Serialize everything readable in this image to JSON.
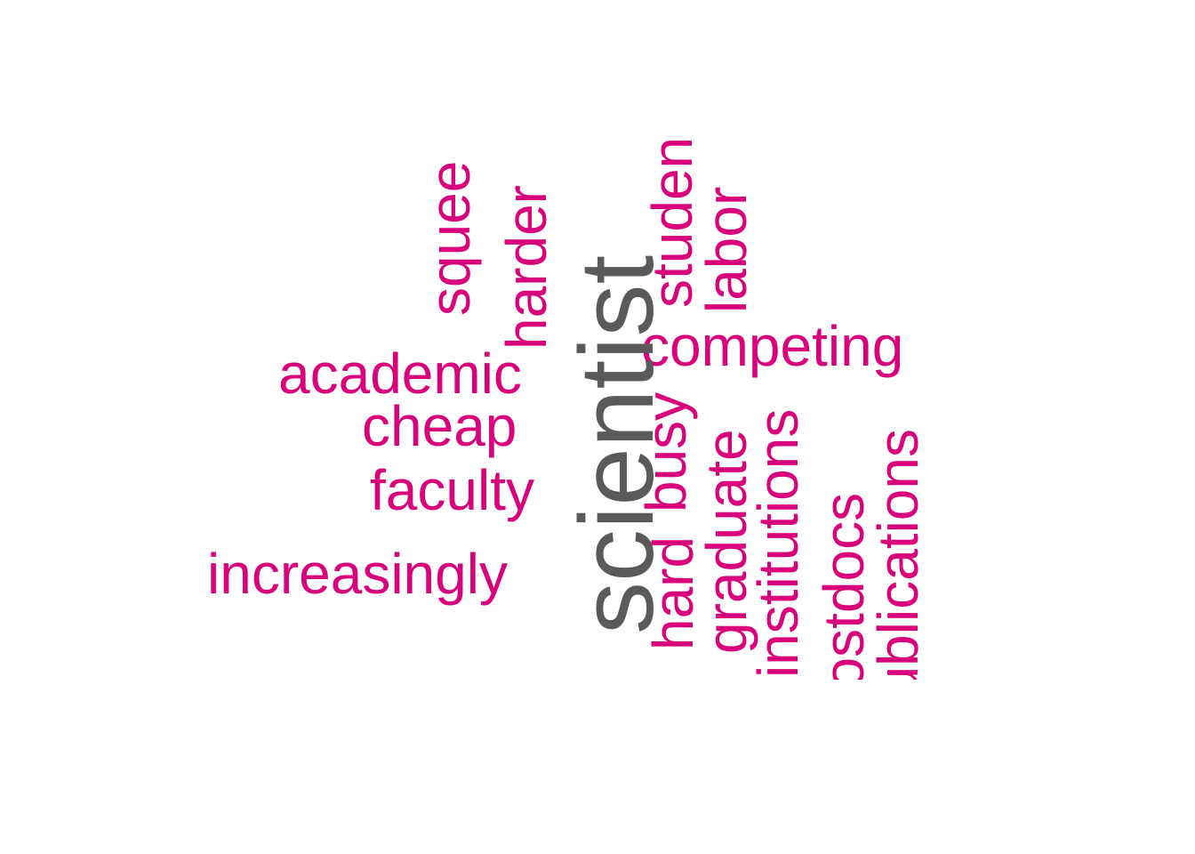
{
  "colors": {
    "primary": "#5a5a5a",
    "secondary": "#d9007c",
    "background": "#ffffff"
  },
  "words": {
    "scientist": "scientist",
    "squee": "squee",
    "harder": "harder",
    "studen": "studen",
    "labor": "labor",
    "competing": "competing",
    "academic": "academic",
    "cheap": "cheap",
    "faculty": "faculty",
    "busy": "busy",
    "graduate": "graduate",
    "institutions": "institutions",
    "postdocs": "postdocs",
    "publications": "publications",
    "increasingly": "increasingly",
    "hard": "hard"
  }
}
